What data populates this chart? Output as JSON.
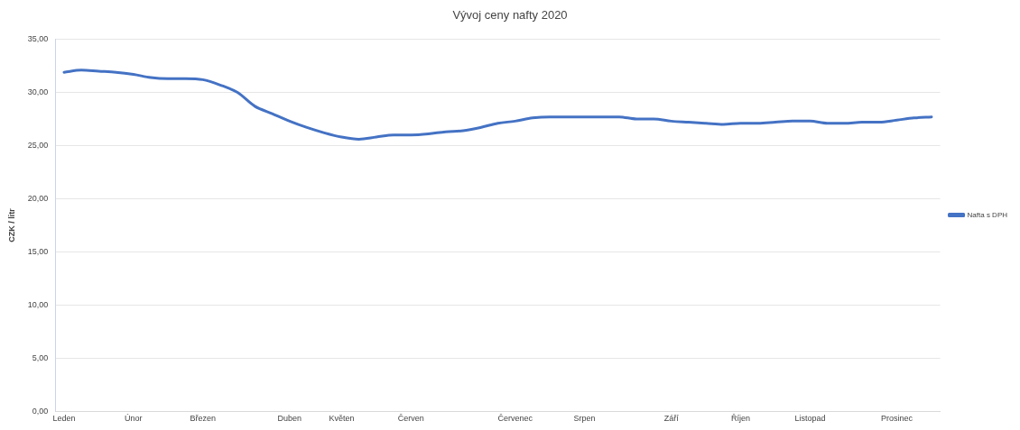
{
  "chart_data": {
    "type": "line",
    "title": "Vývoj ceny nafty 2020",
    "ylabel": "CZK / litr",
    "categories": [
      "Leden",
      null,
      null,
      null,
      "Únor",
      null,
      null,
      null,
      "Březen",
      null,
      null,
      null,
      null,
      "Duben",
      null,
      null,
      "Květen",
      null,
      null,
      null,
      "Červen",
      null,
      null,
      null,
      null,
      null,
      "Červenec",
      null,
      null,
      null,
      "Srpen",
      null,
      null,
      null,
      null,
      "Září",
      null,
      null,
      null,
      "Říjen",
      null,
      null,
      null,
      "Listopad",
      null,
      null,
      null,
      null,
      "Prosinec",
      null,
      null
    ],
    "series": [
      {
        "name": "Nafta s DPH",
        "color": "#4472c4",
        "values": [
          31.9,
          32.1,
          32.0,
          31.9,
          31.7,
          31.4,
          31.3,
          31.3,
          31.2,
          30.7,
          30.0,
          28.7,
          28.0,
          27.3,
          26.7,
          26.2,
          25.8,
          25.6,
          25.8,
          26.0,
          26.0,
          26.1,
          26.3,
          26.4,
          26.7,
          27.1,
          27.3,
          27.6,
          27.7,
          27.7,
          27.7,
          27.7,
          27.7,
          27.5,
          27.5,
          27.3,
          27.2,
          27.1,
          27.0,
          27.1,
          27.1,
          27.2,
          27.3,
          27.3,
          27.1,
          27.1,
          27.2,
          27.2,
          27.4,
          27.6,
          27.7
        ]
      }
    ],
    "ylim": [
      0,
      35
    ],
    "yticks": [
      {
        "value": 0,
        "label": "0,00"
      },
      {
        "value": 5,
        "label": "5,00"
      },
      {
        "value": 10,
        "label": "10,00"
      },
      {
        "value": 15,
        "label": "15,00"
      },
      {
        "value": 20,
        "label": "20,00"
      },
      {
        "value": 25,
        "label": "25,00"
      },
      {
        "value": 30,
        "label": "30,00"
      },
      {
        "value": 35,
        "label": "35,00"
      }
    ],
    "grid": "y",
    "legend": "right",
    "marker": "none",
    "line_style": "solid"
  }
}
